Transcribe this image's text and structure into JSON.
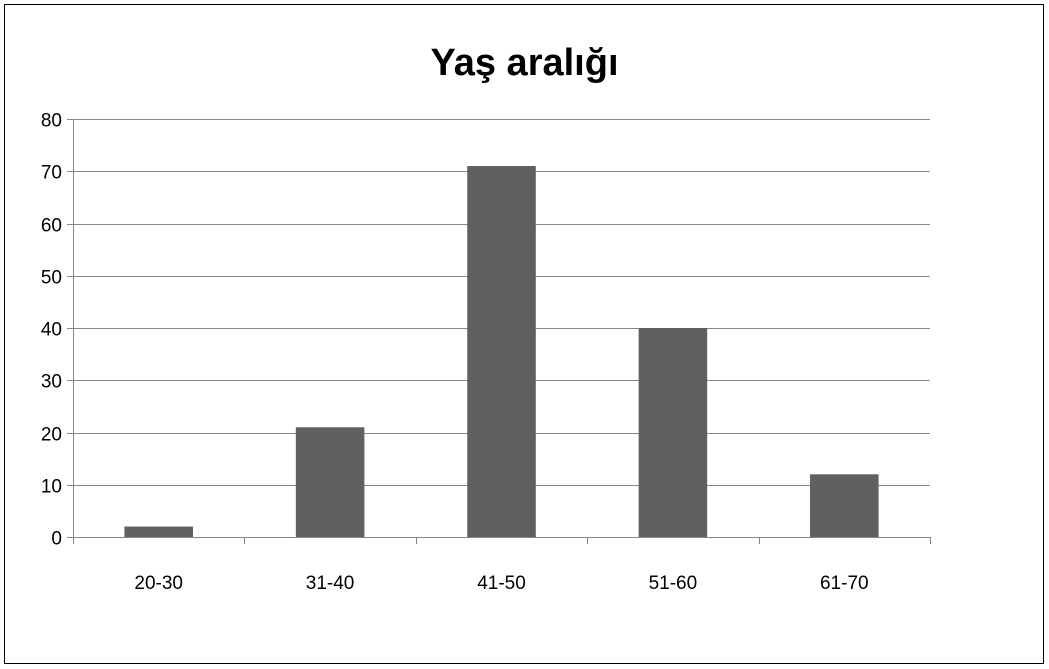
{
  "chart_data": {
    "type": "bar",
    "title": "Yaş aralığı",
    "categories": [
      "20-30",
      "31-40",
      "41-50",
      "51-60",
      "61-70"
    ],
    "values": [
      2,
      21,
      71,
      40,
      12
    ],
    "ylim": [
      0,
      80
    ],
    "yticks": [
      0,
      10,
      20,
      30,
      40,
      50,
      60,
      70,
      80
    ],
    "grid": true,
    "legend": "none",
    "bar_color": "#606060",
    "grid_color": "#868686",
    "axis_color": "#868686"
  }
}
